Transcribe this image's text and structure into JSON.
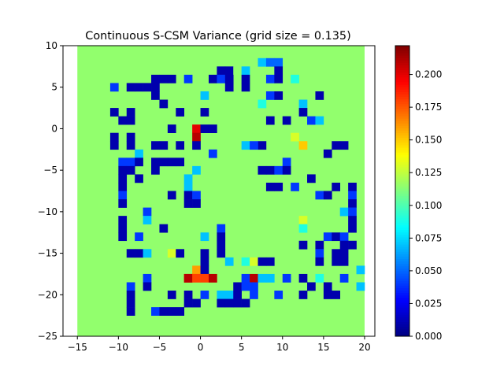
{
  "chart_data": {
    "type": "heatmap",
    "title": "Continuous S-CSM Variance (grid size = 0.135)",
    "xlabel": "",
    "ylabel": "",
    "xlim": [
      -16.75,
      21.25
    ],
    "ylim": [
      -25,
      10
    ],
    "xticks": [
      -15,
      -10,
      -5,
      0,
      5,
      10,
      15,
      20
    ],
    "yticks": [
      -25,
      -20,
      -15,
      -10,
      -5,
      0,
      5,
      10
    ],
    "colormap": "jet",
    "vmin": 0.0,
    "vmax": 0.222,
    "colorbar_ticks": [
      0.0,
      0.025,
      0.05,
      0.075,
      0.1,
      0.125,
      0.15,
      0.175,
      0.2
    ],
    "colorbar_tick_labels": [
      "0.000",
      "0.025",
      "0.050",
      "0.075",
      "0.100",
      "0.125",
      "0.150",
      "0.175",
      "0.200"
    ],
    "grid": false,
    "extent": {
      "x": [
        -15.0,
        20.0
      ],
      "y": [
        -25.0,
        10.0
      ]
    },
    "background_value": 0.115,
    "cell_size": 1.0,
    "cells": [
      {
        "x": 7.5,
        "y": 8.0,
        "v": 0.07
      },
      {
        "x": 8.5,
        "y": 8.0,
        "v": 0.05
      },
      {
        "x": 9.5,
        "y": 8.0,
        "v": 0.05
      },
      {
        "x": 2.5,
        "y": 7.0,
        "v": 0.01
      },
      {
        "x": 3.5,
        "y": 7.0,
        "v": 0.01
      },
      {
        "x": 4.5,
        "y": 7.0,
        "v": 0.115
      },
      {
        "x": 5.5,
        "y": 7.0,
        "v": 0.07
      },
      {
        "x": 9.5,
        "y": 7.0,
        "v": 0.01
      },
      {
        "x": -5.5,
        "y": 6.0,
        "v": 0.01
      },
      {
        "x": -4.5,
        "y": 6.0,
        "v": 0.01
      },
      {
        "x": -3.5,
        "y": 6.0,
        "v": 0.01
      },
      {
        "x": -1.5,
        "y": 6.0,
        "v": 0.04
      },
      {
        "x": 1.5,
        "y": 6.0,
        "v": 0.01
      },
      {
        "x": 2.5,
        "y": 6.0,
        "v": 0.04
      },
      {
        "x": 3.5,
        "y": 6.0,
        "v": 0.01
      },
      {
        "x": 5.5,
        "y": 6.0,
        "v": 0.01
      },
      {
        "x": 8.5,
        "y": 6.0,
        "v": 0.04
      },
      {
        "x": 9.5,
        "y": 6.0,
        "v": 0.01
      },
      {
        "x": 11.5,
        "y": 6.0,
        "v": 0.09
      },
      {
        "x": -10.5,
        "y": 5.0,
        "v": 0.04
      },
      {
        "x": -8.5,
        "y": 5.0,
        "v": 0.01
      },
      {
        "x": -7.5,
        "y": 5.0,
        "v": 0.01
      },
      {
        "x": -6.5,
        "y": 5.0,
        "v": 0.01
      },
      {
        "x": -5.5,
        "y": 5.0,
        "v": 0.01
      },
      {
        "x": 3.5,
        "y": 5.0,
        "v": 0.01
      },
      {
        "x": 5.5,
        "y": 5.0,
        "v": 0.01
      },
      {
        "x": -5.5,
        "y": 4.0,
        "v": 0.01
      },
      {
        "x": 0.5,
        "y": 4.0,
        "v": 0.07
      },
      {
        "x": 8.5,
        "y": 4.0,
        "v": 0.04
      },
      {
        "x": 9.5,
        "y": 4.0,
        "v": 0.01
      },
      {
        "x": 14.5,
        "y": 4.0,
        "v": 0.01
      },
      {
        "x": -4.5,
        "y": 3.0,
        "v": 0.01
      },
      {
        "x": 7.5,
        "y": 3.0,
        "v": 0.09
      },
      {
        "x": 12.5,
        "y": 3.0,
        "v": 0.07
      },
      {
        "x": -10.5,
        "y": 2.0,
        "v": 0.01
      },
      {
        "x": -8.5,
        "y": 2.0,
        "v": 0.01
      },
      {
        "x": -2.5,
        "y": 2.0,
        "v": 0.01
      },
      {
        "x": 0.5,
        "y": 2.0,
        "v": 0.01
      },
      {
        "x": 12.5,
        "y": 2.0,
        "v": 0.01
      },
      {
        "x": -9.5,
        "y": 1.0,
        "v": 0.01
      },
      {
        "x": -8.5,
        "y": 1.0,
        "v": 0.01
      },
      {
        "x": 8.5,
        "y": 1.0,
        "v": 0.01
      },
      {
        "x": 10.5,
        "y": 1.0,
        "v": 0.01
      },
      {
        "x": 13.5,
        "y": 1.0,
        "v": 0.04
      },
      {
        "x": 14.5,
        "y": 1.0,
        "v": 0.07
      },
      {
        "x": -3.5,
        "y": 0.0,
        "v": 0.01
      },
      {
        "x": -0.5,
        "y": 0.0,
        "v": 0.2
      },
      {
        "x": 0.5,
        "y": 0.0,
        "v": 0.01
      },
      {
        "x": 1.5,
        "y": 0.0,
        "v": 0.01
      },
      {
        "x": -10.5,
        "y": -1.0,
        "v": 0.01
      },
      {
        "x": -8.5,
        "y": -1.0,
        "v": 0.01
      },
      {
        "x": -0.5,
        "y": -1.0,
        "v": 0.21
      },
      {
        "x": 11.5,
        "y": -1.0,
        "v": 0.13
      },
      {
        "x": -10.5,
        "y": -2.0,
        "v": 0.01
      },
      {
        "x": -8.5,
        "y": -2.0,
        "v": 0.01
      },
      {
        "x": -2.5,
        "y": -2.0,
        "v": 0.01
      },
      {
        "x": -4.5,
        "y": -2.0,
        "v": 0.01
      },
      {
        "x": -5.5,
        "y": -2.0,
        "v": 0.01
      },
      {
        "x": -0.5,
        "y": -2.0,
        "v": 0.01
      },
      {
        "x": 7.5,
        "y": -2.0,
        "v": 0.01
      },
      {
        "x": 5.5,
        "y": -2.0,
        "v": 0.07
      },
      {
        "x": 6.5,
        "y": -2.0,
        "v": 0.04
      },
      {
        "x": 12.5,
        "y": -2.0,
        "v": 0.15
      },
      {
        "x": 16.5,
        "y": -2.0,
        "v": 0.01
      },
      {
        "x": 17.5,
        "y": -2.0,
        "v": 0.01
      },
      {
        "x": -7.5,
        "y": -3.0,
        "v": 0.07
      },
      {
        "x": 1.5,
        "y": -3.0,
        "v": 0.04
      },
      {
        "x": 15.5,
        "y": -3.0,
        "v": 0.01
      },
      {
        "x": -9.5,
        "y": -4.0,
        "v": 0.04
      },
      {
        "x": -8.5,
        "y": -4.0,
        "v": 0.04
      },
      {
        "x": -7.5,
        "y": -4.0,
        "v": 0.01
      },
      {
        "x": -4.5,
        "y": -4.0,
        "v": 0.01
      },
      {
        "x": -3.5,
        "y": -4.0,
        "v": 0.01
      },
      {
        "x": -5.5,
        "y": -4.0,
        "v": 0.01
      },
      {
        "x": -2.5,
        "y": -4.0,
        "v": 0.01
      },
      {
        "x": 10.5,
        "y": -4.0,
        "v": 0.04
      },
      {
        "x": -9.5,
        "y": -5.0,
        "v": 0.01
      },
      {
        "x": -8.5,
        "y": -5.0,
        "v": 0.01
      },
      {
        "x": -5.5,
        "y": -5.0,
        "v": 0.01
      },
      {
        "x": -0.5,
        "y": -5.0,
        "v": 0.07
      },
      {
        "x": 7.5,
        "y": -5.0,
        "v": 0.01
      },
      {
        "x": 8.5,
        "y": -5.0,
        "v": 0.01
      },
      {
        "x": 9.5,
        "y": -5.0,
        "v": 0.04
      },
      {
        "x": 10.5,
        "y": -5.0,
        "v": 0.01
      },
      {
        "x": -9.5,
        "y": -6.0,
        "v": 0.01
      },
      {
        "x": -7.5,
        "y": -6.0,
        "v": 0.01
      },
      {
        "x": -1.5,
        "y": -6.0,
        "v": 0.07
      },
      {
        "x": 13.5,
        "y": -6.0,
        "v": 0.01
      },
      {
        "x": -9.5,
        "y": -7.0,
        "v": 0.01
      },
      {
        "x": -1.5,
        "y": -7.0,
        "v": 0.07
      },
      {
        "x": 8.5,
        "y": -7.0,
        "v": 0.01
      },
      {
        "x": 9.5,
        "y": -7.0,
        "v": 0.01
      },
      {
        "x": 11.5,
        "y": -7.0,
        "v": 0.04
      },
      {
        "x": 16.5,
        "y": -7.0,
        "v": 0.01
      },
      {
        "x": 18.5,
        "y": -7.0,
        "v": 0.01
      },
      {
        "x": -9.5,
        "y": -8.0,
        "v": 0.04
      },
      {
        "x": -3.5,
        "y": -8.0,
        "v": 0.01
      },
      {
        "x": -1.5,
        "y": -8.0,
        "v": 0.01
      },
      {
        "x": -0.5,
        "y": -8.0,
        "v": 0.04
      },
      {
        "x": 14.5,
        "y": -8.0,
        "v": 0.04
      },
      {
        "x": 15.5,
        "y": -8.0,
        "v": 0.01
      },
      {
        "x": 18.5,
        "y": -8.0,
        "v": 0.04
      },
      {
        "x": -9.5,
        "y": -9.0,
        "v": 0.01
      },
      {
        "x": -1.5,
        "y": -9.0,
        "v": 0.01
      },
      {
        "x": -0.5,
        "y": -9.0,
        "v": 0.01
      },
      {
        "x": 18.5,
        "y": -9.0,
        "v": 0.01
      },
      {
        "x": -6.5,
        "y": -10.0,
        "v": 0.04
      },
      {
        "x": 17.5,
        "y": -10.0,
        "v": 0.07
      },
      {
        "x": 18.5,
        "y": -10.0,
        "v": 0.04
      },
      {
        "x": -9.5,
        "y": -11.0,
        "v": 0.01
      },
      {
        "x": -6.5,
        "y": -11.0,
        "v": 0.07
      },
      {
        "x": 12.5,
        "y": -11.0,
        "v": 0.13
      },
      {
        "x": 18.5,
        "y": -11.0,
        "v": 0.01
      },
      {
        "x": -9.5,
        "y": -12.0,
        "v": 0.01
      },
      {
        "x": -4.5,
        "y": -12.0,
        "v": 0.01
      },
      {
        "x": 2.5,
        "y": -12.0,
        "v": 0.04
      },
      {
        "x": 12.5,
        "y": -12.0,
        "v": 0.09
      },
      {
        "x": 18.5,
        "y": -12.0,
        "v": 0.01
      },
      {
        "x": -9.5,
        "y": -13.0,
        "v": 0.01
      },
      {
        "x": -7.5,
        "y": -13.0,
        "v": 0.04
      },
      {
        "x": 0.5,
        "y": -13.0,
        "v": 0.07
      },
      {
        "x": 2.5,
        "y": -13.0,
        "v": 0.01
      },
      {
        "x": 15.5,
        "y": -13.0,
        "v": 0.04
      },
      {
        "x": 16.5,
        "y": -13.0,
        "v": 0.01
      },
      {
        "x": 17.5,
        "y": -13.0,
        "v": 0.04
      },
      {
        "x": 2.5,
        "y": -14.0,
        "v": 0.01
      },
      {
        "x": 12.5,
        "y": -14.0,
        "v": 0.01
      },
      {
        "x": 14.5,
        "y": -14.0,
        "v": 0.01
      },
      {
        "x": 17.5,
        "y": -14.0,
        "v": 0.01
      },
      {
        "x": 18.5,
        "y": -14.0,
        "v": 0.01
      },
      {
        "x": -8.5,
        "y": -15.0,
        "v": 0.01
      },
      {
        "x": -7.5,
        "y": -15.0,
        "v": 0.01
      },
      {
        "x": -6.5,
        "y": -15.0,
        "v": 0.07
      },
      {
        "x": -3.5,
        "y": -15.0,
        "v": 0.13
      },
      {
        "x": -2.5,
        "y": -15.0,
        "v": 0.01
      },
      {
        "x": 0.5,
        "y": -15.0,
        "v": 0.01
      },
      {
        "x": 2.5,
        "y": -15.0,
        "v": 0.01
      },
      {
        "x": 14.5,
        "y": -15.0,
        "v": 0.04
      },
      {
        "x": 16.5,
        "y": -15.0,
        "v": 0.01
      },
      {
        "x": 17.5,
        "y": -15.0,
        "v": 0.01
      },
      {
        "x": 0.5,
        "y": -16.0,
        "v": 0.01
      },
      {
        "x": 3.5,
        "y": -16.0,
        "v": 0.07
      },
      {
        "x": 5.5,
        "y": -16.0,
        "v": 0.09
      },
      {
        "x": 6.5,
        "y": -16.0,
        "v": 0.13
      },
      {
        "x": 7.5,
        "y": -16.0,
        "v": 0.01
      },
      {
        "x": 8.5,
        "y": -16.0,
        "v": 0.01
      },
      {
        "x": 14.5,
        "y": -16.0,
        "v": 0.01
      },
      {
        "x": 16.5,
        "y": -16.0,
        "v": 0.01
      },
      {
        "x": 17.5,
        "y": -16.0,
        "v": 0.01
      },
      {
        "x": -0.5,
        "y": -17.0,
        "v": 0.16
      },
      {
        "x": 0.5,
        "y": -17.0,
        "v": 0.01
      },
      {
        "x": 19.5,
        "y": -17.0,
        "v": 0.07
      },
      {
        "x": -6.5,
        "y": -18.0,
        "v": 0.04
      },
      {
        "x": -1.5,
        "y": -18.0,
        "v": 0.18
      },
      {
        "x": -1.5,
        "y": -18.0,
        "v": 0.21
      },
      {
        "x": -0.5,
        "y": -18.0,
        "v": 0.18
      },
      {
        "x": 0.5,
        "y": -18.0,
        "v": 0.18
      },
      {
        "x": 1.5,
        "y": -18.0,
        "v": 0.21
      },
      {
        "x": 5.5,
        "y": -18.0,
        "v": 0.04
      },
      {
        "x": 6.5,
        "y": -18.0,
        "v": 0.21
      },
      {
        "x": 7.5,
        "y": -18.0,
        "v": 0.07
      },
      {
        "x": 8.5,
        "y": -18.0,
        "v": 0.07
      },
      {
        "x": 10.5,
        "y": -18.0,
        "v": 0.04
      },
      {
        "x": 12.5,
        "y": -18.0,
        "v": 0.01
      },
      {
        "x": 14.5,
        "y": -18.0,
        "v": 0.09
      },
      {
        "x": 17.5,
        "y": -18.0,
        "v": 0.04
      },
      {
        "x": -8.5,
        "y": -19.0,
        "v": 0.04
      },
      {
        "x": -6.5,
        "y": -19.0,
        "v": 0.01
      },
      {
        "x": 4.5,
        "y": -19.0,
        "v": 0.01
      },
      {
        "x": 5.5,
        "y": -19.0,
        "v": 0.04
      },
      {
        "x": 6.5,
        "y": -19.0,
        "v": 0.04
      },
      {
        "x": 13.5,
        "y": -19.0,
        "v": 0.01
      },
      {
        "x": 15.5,
        "y": -19.0,
        "v": 0.01
      },
      {
        "x": 19.5,
        "y": -19.0,
        "v": 0.07
      },
      {
        "x": -8.5,
        "y": -20.0,
        "v": 0.01
      },
      {
        "x": -3.5,
        "y": -20.0,
        "v": 0.01
      },
      {
        "x": -1.5,
        "y": -20.0,
        "v": 0.01
      },
      {
        "x": 0.5,
        "y": -20.0,
        "v": 0.04
      },
      {
        "x": 2.5,
        "y": -20.0,
        "v": 0.07
      },
      {
        "x": 3.5,
        "y": -20.0,
        "v": 0.07
      },
      {
        "x": 4.5,
        "y": -20.0,
        "v": 0.01
      },
      {
        "x": 6.5,
        "y": -20.0,
        "v": 0.04
      },
      {
        "x": 9.5,
        "y": -20.0,
        "v": 0.04
      },
      {
        "x": 12.5,
        "y": -20.0,
        "v": 0.01
      },
      {
        "x": 15.5,
        "y": -20.0,
        "v": 0.01
      },
      {
        "x": 16.5,
        "y": -20.0,
        "v": 0.01
      },
      {
        "x": -8.5,
        "y": -21.0,
        "v": 0.01
      },
      {
        "x": -1.5,
        "y": -21.0,
        "v": 0.01
      },
      {
        "x": -0.5,
        "y": -21.0,
        "v": 0.01
      },
      {
        "x": 2.5,
        "y": -21.0,
        "v": 0.01
      },
      {
        "x": 3.5,
        "y": -21.0,
        "v": 0.01
      },
      {
        "x": 4.5,
        "y": -21.0,
        "v": 0.01
      },
      {
        "x": 5.5,
        "y": -21.0,
        "v": 0.01
      },
      {
        "x": -8.5,
        "y": -22.0,
        "v": 0.01
      },
      {
        "x": -5.5,
        "y": -22.0,
        "v": 0.04
      },
      {
        "x": -4.5,
        "y": -22.0,
        "v": 0.01
      },
      {
        "x": -3.5,
        "y": -22.0,
        "v": 0.01
      },
      {
        "x": -2.5,
        "y": -22.0,
        "v": 0.01
      }
    ]
  }
}
